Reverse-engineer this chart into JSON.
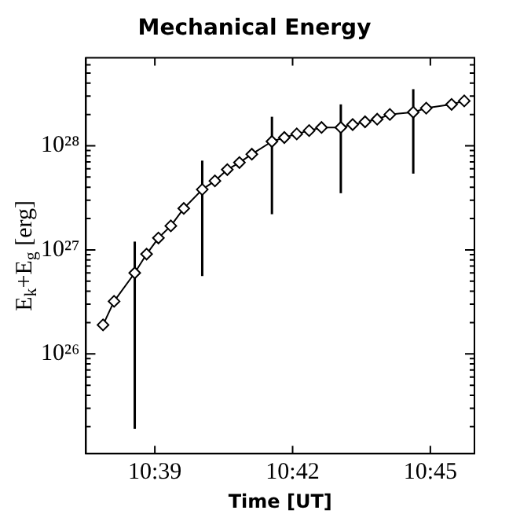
{
  "chart_data": {
    "type": "line",
    "title": "Mechanical Energy",
    "xlabel": "Time [UT]",
    "ylabel": "E$_{k}$+E$_{g}$ [erg]",
    "log": "y",
    "grid": false,
    "legend": false,
    "marker": "diamond",
    "line_style": "solid",
    "xlim": [
      10.625,
      10.766
    ],
    "xticks": [
      {
        "value": 10.65,
        "label": "10:39"
      },
      {
        "value": 10.7,
        "label": "10:42"
      },
      {
        "value": 10.75,
        "label": "10:45"
      }
    ],
    "ylim": [
      1.1e+25,
      7e+28
    ],
    "yticks": [
      {
        "value": 2e+25,
        "label": null
      },
      {
        "value": 3e+25,
        "label": null
      },
      {
        "value": 4e+25,
        "label": null
      },
      {
        "value": 5e+25,
        "label": null
      },
      {
        "value": 6e+25,
        "label": null
      },
      {
        "value": 7e+25,
        "label": null
      },
      {
        "value": 8e+25,
        "label": null
      },
      {
        "value": 9e+25,
        "label": null
      },
      {
        "value": 1e+26,
        "label": "10²⁶"
      },
      {
        "value": 2e+26,
        "label": null
      },
      {
        "value": 3e+26,
        "label": null
      },
      {
        "value": 4e+26,
        "label": null
      },
      {
        "value": 5e+26,
        "label": null
      },
      {
        "value": 6e+26,
        "label": null
      },
      {
        "value": 7e+26,
        "label": null
      },
      {
        "value": 8e+26,
        "label": null
      },
      {
        "value": 9e+26,
        "label": null
      },
      {
        "value": 1e+27,
        "label": "10²⁷"
      },
      {
        "value": 2e+27,
        "label": null
      },
      {
        "value": 3e+27,
        "label": null
      },
      {
        "value": 4e+27,
        "label": null
      },
      {
        "value": 5e+27,
        "label": null
      },
      {
        "value": 6e+27,
        "label": null
      },
      {
        "value": 7e+27,
        "label": null
      },
      {
        "value": 8e+27,
        "label": null
      },
      {
        "value": 9e+27,
        "label": null
      },
      {
        "value": 1e+28,
        "label": "10²⁸"
      },
      {
        "value": 2e+28,
        "label": null
      },
      {
        "value": 3e+28,
        "label": null
      },
      {
        "value": 4e+28,
        "label": null
      },
      {
        "value": 5e+28,
        "label": null
      },
      {
        "value": 6e+28,
        "label": null
      }
    ],
    "series": [
      {
        "color": "#000000",
        "x": [
          10.6312,
          10.6352,
          10.6427,
          10.647,
          10.6513,
          10.6558,
          10.6605,
          10.6672,
          10.6718,
          10.6763,
          10.6807,
          10.6852,
          10.6925,
          10.697,
          10.7015,
          10.706,
          10.7105,
          10.7175,
          10.7218,
          10.7263,
          10.7307,
          10.7353,
          10.7438,
          10.7485,
          10.7577,
          10.7623
        ],
        "values": [
          1.9e+26,
          3.2e+26,
          6e+26,
          9.1e+26,
          1.3e+27,
          1.7e+27,
          2.5e+27,
          3.8e+27,
          4.6e+27,
          5.9e+27,
          6.9e+27,
          8.3e+27,
          1.1e+28,
          1.2e+28,
          1.3e+28,
          1.4e+28,
          1.5e+28,
          1.5e+28,
          1.6e+28,
          1.7e+28,
          1.8e+28,
          2e+28,
          2.1e+28,
          2.3e+28,
          2.5e+28,
          2.7e+28
        ],
        "errors": [
          null,
          null,
          [
            1.9e+25,
            1.2e+27
          ],
          null,
          null,
          null,
          null,
          [
            5.6e+26,
            7.2e+27
          ],
          null,
          null,
          null,
          null,
          [
            2.2e+27,
            1.9e+28
          ],
          null,
          null,
          null,
          null,
          [
            3.5e+27,
            2.5e+28
          ],
          null,
          null,
          null,
          null,
          [
            5.4e+27,
            3.5e+28
          ],
          null,
          null,
          null
        ]
      }
    ]
  }
}
